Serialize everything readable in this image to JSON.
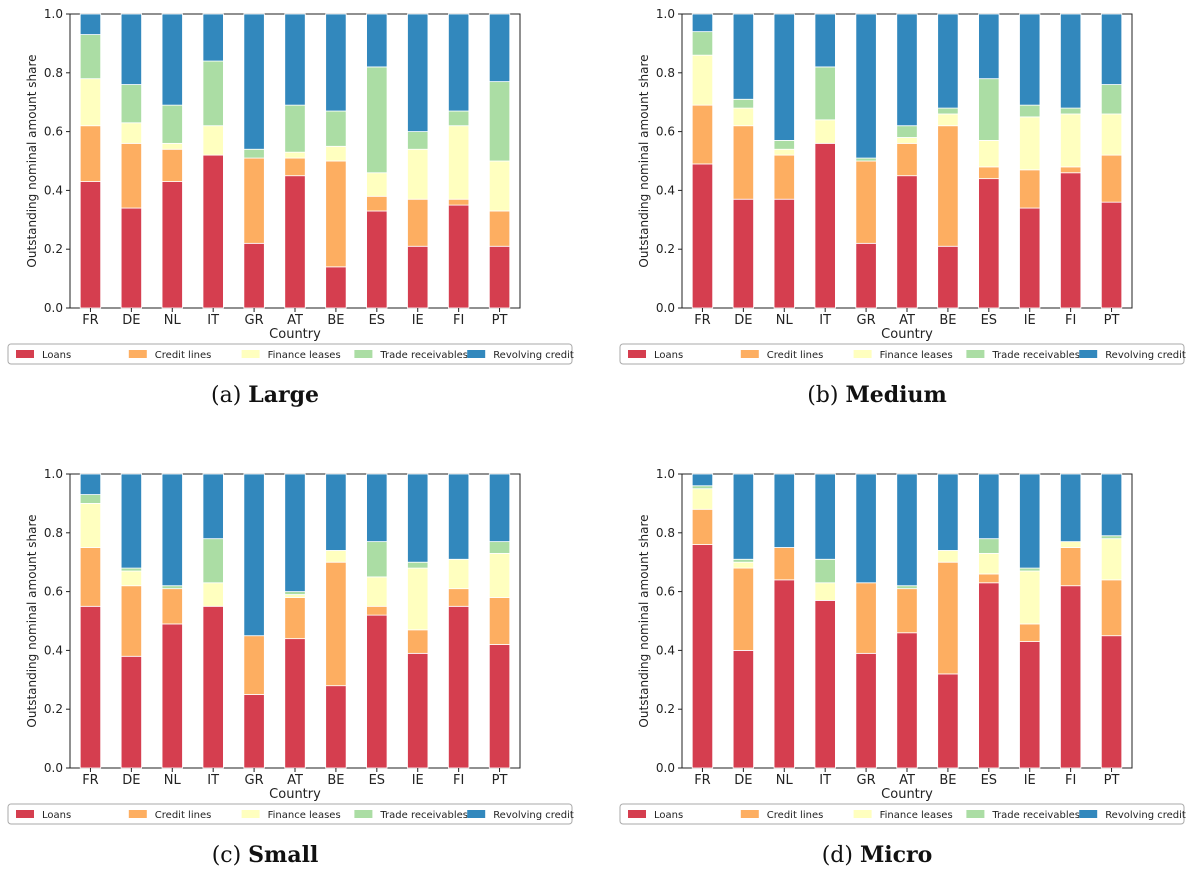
{
  "chart_data": [
    {
      "type": "bar",
      "stacked": true,
      "caption_prefix": "(a)",
      "caption_title": "Large",
      "xlabel": "Country",
      "ylabel": "Outstanding nominal amount share",
      "ylim": [
        0,
        1
      ],
      "yticks": [
        "0.0",
        "0.2",
        "0.4",
        "0.6",
        "0.8",
        "1.0"
      ],
      "legend_position": "bottom",
      "categories": [
        "FR",
        "DE",
        "NL",
        "IT",
        "GR",
        "AT",
        "BE",
        "ES",
        "IE",
        "FI",
        "PT"
      ],
      "series": [
        {
          "name": "Loans",
          "color": "#d53e4f",
          "values": [
            0.43,
            0.34,
            0.43,
            0.52,
            0.22,
            0.45,
            0.14,
            0.33,
            0.21,
            0.35,
            0.21
          ]
        },
        {
          "name": "Credit lines",
          "color": "#fdae61",
          "values": [
            0.19,
            0.22,
            0.11,
            0.0,
            0.29,
            0.06,
            0.36,
            0.05,
            0.16,
            0.02,
            0.12
          ]
        },
        {
          "name": "Finance leases",
          "color": "#ffffbf",
          "values": [
            0.16,
            0.07,
            0.02,
            0.1,
            0.0,
            0.02,
            0.05,
            0.08,
            0.17,
            0.25,
            0.17
          ]
        },
        {
          "name": "Trade receivables",
          "color": "#abdda4",
          "values": [
            0.15,
            0.13,
            0.13,
            0.22,
            0.03,
            0.16,
            0.12,
            0.36,
            0.06,
            0.05,
            0.27
          ]
        },
        {
          "name": "Revolving credit",
          "color": "#3288bd",
          "values": [
            0.07,
            0.24,
            0.31,
            0.16,
            0.46,
            0.31,
            0.33,
            0.18,
            0.4,
            0.33,
            0.23
          ]
        }
      ]
    },
    {
      "type": "bar",
      "stacked": true,
      "caption_prefix": "(b)",
      "caption_title": "Medium",
      "xlabel": "Country",
      "ylabel": "Outstanding nominal amount share",
      "ylim": [
        0,
        1
      ],
      "yticks": [
        "0.0",
        "0.2",
        "0.4",
        "0.6",
        "0.8",
        "1.0"
      ],
      "legend_position": "bottom",
      "categories": [
        "FR",
        "DE",
        "NL",
        "IT",
        "GR",
        "AT",
        "BE",
        "ES",
        "IE",
        "FI",
        "PT"
      ],
      "series": [
        {
          "name": "Loans",
          "color": "#d53e4f",
          "values": [
            0.49,
            0.37,
            0.37,
            0.56,
            0.22,
            0.45,
            0.21,
            0.44,
            0.34,
            0.46,
            0.36
          ]
        },
        {
          "name": "Credit lines",
          "color": "#fdae61",
          "values": [
            0.2,
            0.25,
            0.15,
            0.0,
            0.28,
            0.11,
            0.41,
            0.04,
            0.13,
            0.02,
            0.16
          ]
        },
        {
          "name": "Finance leases",
          "color": "#ffffbf",
          "values": [
            0.17,
            0.06,
            0.02,
            0.08,
            0.0,
            0.02,
            0.04,
            0.09,
            0.18,
            0.18,
            0.14
          ]
        },
        {
          "name": "Trade receivables",
          "color": "#abdda4",
          "values": [
            0.08,
            0.03,
            0.03,
            0.18,
            0.01,
            0.04,
            0.02,
            0.21,
            0.04,
            0.02,
            0.1
          ]
        },
        {
          "name": "Revolving credit",
          "color": "#3288bd",
          "values": [
            0.06,
            0.29,
            0.43,
            0.18,
            0.49,
            0.38,
            0.32,
            0.22,
            0.31,
            0.32,
            0.24
          ]
        }
      ]
    },
    {
      "type": "bar",
      "stacked": true,
      "caption_prefix": "(c)",
      "caption_title": "Small",
      "xlabel": "Country",
      "ylabel": "Outstanding nominal amount share",
      "ylim": [
        0,
        1
      ],
      "yticks": [
        "0.0",
        "0.2",
        "0.4",
        "0.6",
        "0.8",
        "1.0"
      ],
      "legend_position": "bottom",
      "categories": [
        "FR",
        "DE",
        "NL",
        "IT",
        "GR",
        "AT",
        "BE",
        "ES",
        "IE",
        "FI",
        "PT"
      ],
      "series": [
        {
          "name": "Loans",
          "color": "#d53e4f",
          "values": [
            0.55,
            0.38,
            0.49,
            0.55,
            0.25,
            0.44,
            0.28,
            0.52,
            0.39,
            0.55,
            0.42
          ]
        },
        {
          "name": "Credit lines",
          "color": "#fdae61",
          "values": [
            0.2,
            0.24,
            0.12,
            0.0,
            0.2,
            0.14,
            0.42,
            0.03,
            0.08,
            0.06,
            0.16
          ]
        },
        {
          "name": "Finance leases",
          "color": "#ffffbf",
          "values": [
            0.15,
            0.05,
            0.0,
            0.08,
            0.0,
            0.01,
            0.04,
            0.1,
            0.21,
            0.1,
            0.15
          ]
        },
        {
          "name": "Trade receivables",
          "color": "#abdda4",
          "values": [
            0.03,
            0.01,
            0.01,
            0.15,
            0.0,
            0.01,
            0.0,
            0.12,
            0.02,
            0.0,
            0.04
          ]
        },
        {
          "name": "Revolving credit",
          "color": "#3288bd",
          "values": [
            0.07,
            0.32,
            0.38,
            0.22,
            0.55,
            0.4,
            0.26,
            0.23,
            0.3,
            0.29,
            0.23
          ]
        }
      ]
    },
    {
      "type": "bar",
      "stacked": true,
      "caption_prefix": "(d)",
      "caption_title": "Micro",
      "xlabel": "Country",
      "ylabel": "Outstanding nominal amount share",
      "ylim": [
        0,
        1
      ],
      "yticks": [
        "0.0",
        "0.2",
        "0.4",
        "0.6",
        "0.8",
        "1.0"
      ],
      "legend_position": "bottom",
      "categories": [
        "FR",
        "DE",
        "NL",
        "IT",
        "GR",
        "AT",
        "BE",
        "ES",
        "IE",
        "FI",
        "PT"
      ],
      "series": [
        {
          "name": "Loans",
          "color": "#d53e4f",
          "values": [
            0.76,
            0.4,
            0.64,
            0.57,
            0.39,
            0.46,
            0.32,
            0.63,
            0.43,
            0.62,
            0.45
          ]
        },
        {
          "name": "Credit lines",
          "color": "#fdae61",
          "values": [
            0.12,
            0.28,
            0.11,
            0.0,
            0.24,
            0.15,
            0.38,
            0.03,
            0.06,
            0.13,
            0.19
          ]
        },
        {
          "name": "Finance leases",
          "color": "#ffffbf",
          "values": [
            0.07,
            0.02,
            0.0,
            0.06,
            0.0,
            0.0,
            0.04,
            0.07,
            0.18,
            0.02,
            0.14
          ]
        },
        {
          "name": "Trade receivables",
          "color": "#abdda4",
          "values": [
            0.01,
            0.01,
            0.0,
            0.08,
            0.0,
            0.01,
            0.0,
            0.05,
            0.01,
            0.0,
            0.01
          ]
        },
        {
          "name": "Revolving credit",
          "color": "#3288bd",
          "values": [
            0.04,
            0.29,
            0.25,
            0.29,
            0.37,
            0.38,
            0.26,
            0.22,
            0.32,
            0.23,
            0.21
          ]
        }
      ]
    }
  ]
}
